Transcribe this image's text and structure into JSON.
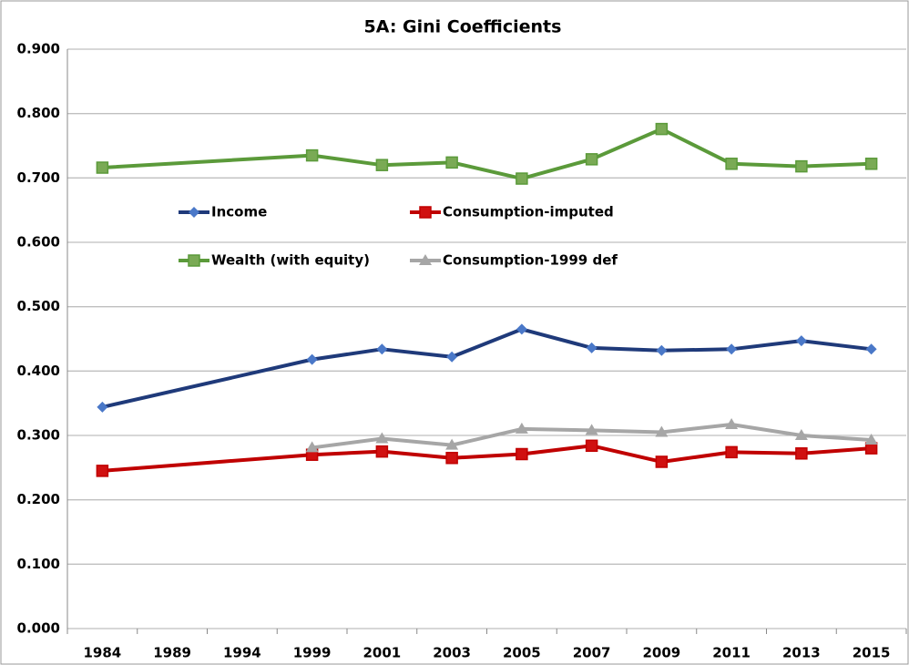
{
  "chart_data": {
    "type": "line",
    "title": "5A: Gini Coefficients",
    "categories": [
      "1984",
      "1989",
      "1994",
      "1999",
      "2001",
      "2003",
      "2005",
      "2007",
      "2009",
      "2011",
      "2013",
      "2015"
    ],
    "series": [
      {
        "name": "Income",
        "color": "#1f3a7a",
        "marker": "diamond",
        "marker_color": "#4a78c8",
        "values": [
          0.344,
          null,
          null,
          0.418,
          0.434,
          0.422,
          0.465,
          0.436,
          0.432,
          0.434,
          0.447,
          0.434
        ]
      },
      {
        "name": "Consumption-imputed",
        "color": "#c00000",
        "marker": "square",
        "marker_color": "#d01010",
        "values": [
          0.245,
          null,
          null,
          0.27,
          0.275,
          0.265,
          0.271,
          0.284,
          0.259,
          0.274,
          0.272,
          0.28
        ]
      },
      {
        "name": "Wealth (with equity)",
        "color": "#5b9a3a",
        "marker": "square",
        "marker_color": "#7aaa55",
        "values": [
          0.716,
          null,
          null,
          0.735,
          0.72,
          0.724,
          0.699,
          0.729,
          0.776,
          0.722,
          0.718,
          0.722
        ]
      },
      {
        "name": "Consumption-1999 def",
        "color": "#a6a6a6",
        "marker": "triangle",
        "marker_color": "#a6a6a6",
        "values": [
          null,
          null,
          null,
          0.281,
          0.295,
          0.285,
          0.31,
          0.308,
          0.305,
          0.317,
          0.3,
          0.293
        ]
      }
    ],
    "ylim": [
      0,
      0.9
    ],
    "yticks": [
      {
        "value": 0,
        "label": "0.000"
      },
      {
        "value": 0.1,
        "label": "0.100"
      },
      {
        "value": 0.2,
        "label": "0.200"
      },
      {
        "value": 0.3,
        "label": "0.300"
      },
      {
        "value": 0.4,
        "label": "0.400"
      },
      {
        "value": 0.5,
        "label": "0.500"
      },
      {
        "value": 0.6,
        "label": "0.600"
      },
      {
        "value": 0.7,
        "label": "0.700"
      },
      {
        "value": 0.8,
        "label": "0.800"
      },
      {
        "value": 0.9,
        "label": "0.900"
      }
    ],
    "grid": true
  }
}
